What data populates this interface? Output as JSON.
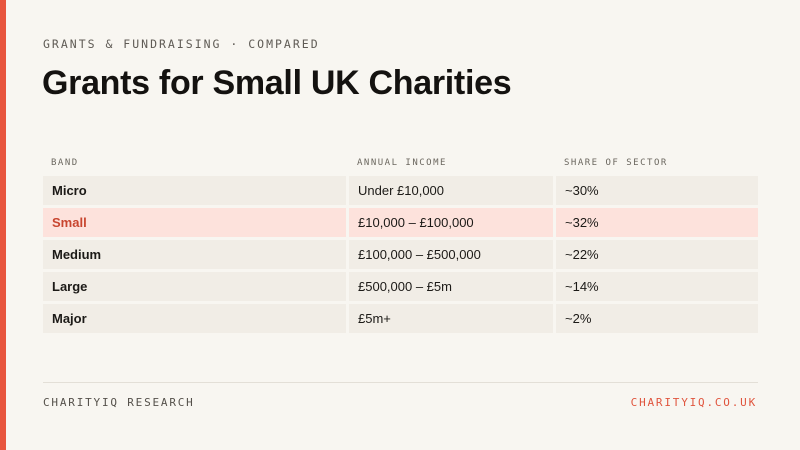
{
  "eyebrow": "GRANTS & FUNDRAISING · COMPARED",
  "title": "Grants for Small UK Charities",
  "table": {
    "headers": [
      "BAND",
      "ANNUAL INCOME",
      "SHARE OF SECTOR"
    ],
    "rows": [
      {
        "band": "Micro",
        "income": "Under £10,000",
        "share": "~30%"
      },
      {
        "band": "Small",
        "income": "£10,000 – £100,000",
        "share": "~32%"
      },
      {
        "band": "Medium",
        "income": "£100,000 – £500,000",
        "share": "~22%"
      },
      {
        "band": "Large",
        "income": "£500,000 – £5m",
        "share": "~14%"
      },
      {
        "band": "Major",
        "income": "£5m+",
        "share": "~2%"
      }
    ],
    "highlighted_row": "Small"
  },
  "footer": {
    "source": "CHARITYIQ RESEARCH",
    "site": "CHARITYIQ.CO.UK"
  },
  "colors": {
    "accent": "#e8553e",
    "highlight_background": "#fde2dc",
    "highlight_text": "#c8452f",
    "row_background": "#f1ede6",
    "page_background": "#f8f6f1"
  }
}
